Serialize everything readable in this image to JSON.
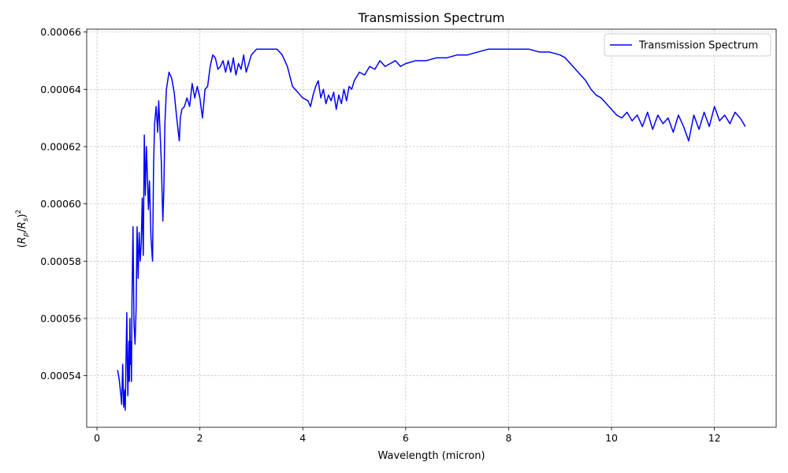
{
  "chart_data": {
    "type": "line",
    "title": "Transmission Spectrum",
    "xlabel": "Wavelength (micron)",
    "ylabel": "(R_p/R_s)^2",
    "ylabel_parts": {
      "open": "(",
      "R": "R",
      "p": "p",
      "slash": "/",
      "s": "s",
      "close": ")",
      "exp": "2"
    },
    "xlim": [
      -0.2,
      13.2
    ],
    "ylim": [
      0.000522,
      0.000661
    ],
    "xticks": [
      0,
      2,
      4,
      6,
      8,
      10,
      12
    ],
    "xtick_labels": [
      "0",
      "2",
      "4",
      "6",
      "8",
      "10",
      "12"
    ],
    "yticks": [
      0.00054,
      0.00056,
      0.00058,
      0.0006,
      0.00062,
      0.00064,
      0.00066
    ],
    "ytick_labels": [
      "0.00054",
      "0.00056",
      "0.00058",
      "0.00060",
      "0.00062",
      "0.00064",
      "0.00066"
    ],
    "grid": true,
    "legend_position": "top-right",
    "series": [
      {
        "name": "Transmission Spectrum",
        "color": "#0000ff",
        "x": [
          0.4,
          0.43,
          0.46,
          0.48,
          0.5,
          0.52,
          0.54,
          0.55,
          0.56,
          0.58,
          0.59,
          0.6,
          0.62,
          0.63,
          0.64,
          0.65,
          0.66,
          0.67,
          0.68,
          0.7,
          0.72,
          0.74,
          0.76,
          0.78,
          0.8,
          0.82,
          0.84,
          0.86,
          0.88,
          0.9,
          0.92,
          0.94,
          0.96,
          0.98,
          1.0,
          1.02,
          1.05,
          1.08,
          1.1,
          1.12,
          1.15,
          1.18,
          1.2,
          1.25,
          1.28,
          1.3,
          1.32,
          1.35,
          1.4,
          1.45,
          1.5,
          1.55,
          1.6,
          1.62,
          1.65,
          1.7,
          1.75,
          1.8,
          1.85,
          1.9,
          1.95,
          2.0,
          2.05,
          2.1,
          2.15,
          2.2,
          2.25,
          2.3,
          2.35,
          2.4,
          2.45,
          2.5,
          2.55,
          2.6,
          2.65,
          2.7,
          2.75,
          2.8,
          2.85,
          2.9,
          2.95,
          3.0,
          3.1,
          3.2,
          3.3,
          3.4,
          3.5,
          3.6,
          3.7,
          3.8,
          3.9,
          4.0,
          4.1,
          4.15,
          4.2,
          4.25,
          4.3,
          4.35,
          4.4,
          4.45,
          4.5,
          4.55,
          4.6,
          4.65,
          4.7,
          4.75,
          4.8,
          4.85,
          4.9,
          4.95,
          5.0,
          5.1,
          5.2,
          5.3,
          5.4,
          5.5,
          5.6,
          5.7,
          5.8,
          5.9,
          6.0,
          6.2,
          6.4,
          6.6,
          6.8,
          7.0,
          7.2,
          7.4,
          7.6,
          7.8,
          8.0,
          8.2,
          8.4,
          8.6,
          8.8,
          9.0,
          9.1,
          9.2,
          9.3,
          9.4,
          9.5,
          9.6,
          9.7,
          9.8,
          9.9,
          10.0,
          10.1,
          10.2,
          10.3,
          10.4,
          10.5,
          10.6,
          10.7,
          10.8,
          10.9,
          11.0,
          11.1,
          11.2,
          11.3,
          11.4,
          11.5,
          11.6,
          11.7,
          11.8,
          11.9,
          12.0,
          12.1,
          12.2,
          12.3,
          12.4,
          12.5,
          12.6
        ],
        "y": [
          0.000542,
          0.000539,
          0.000534,
          0.00053,
          0.000544,
          0.000529,
          0.000535,
          0.000528,
          0.000541,
          0.000562,
          0.000545,
          0.000533,
          0.000552,
          0.000538,
          0.00056,
          0.000544,
          0.000552,
          0.000538,
          0.000565,
          0.000592,
          0.000558,
          0.000551,
          0.000563,
          0.000592,
          0.000574,
          0.00059,
          0.00058,
          0.000586,
          0.000602,
          0.000582,
          0.000624,
          0.000603,
          0.00062,
          0.00061,
          0.000598,
          0.000608,
          0.000588,
          0.00058,
          0.000613,
          0.000628,
          0.000634,
          0.000625,
          0.000636,
          0.000615,
          0.000594,
          0.000605,
          0.000628,
          0.00064,
          0.000646,
          0.000644,
          0.000639,
          0.00063,
          0.000622,
          0.00063,
          0.000633,
          0.000634,
          0.000637,
          0.000634,
          0.000642,
          0.000637,
          0.000641,
          0.000637,
          0.00063,
          0.00064,
          0.000641,
          0.000648,
          0.000652,
          0.000651,
          0.000647,
          0.000648,
          0.00065,
          0.000646,
          0.00065,
          0.000646,
          0.000651,
          0.000645,
          0.000649,
          0.000647,
          0.000652,
          0.000646,
          0.000649,
          0.000652,
          0.000654,
          0.000654,
          0.000654,
          0.000654,
          0.000654,
          0.000652,
          0.000648,
          0.000641,
          0.000639,
          0.000637,
          0.000636,
          0.000634,
          0.000638,
          0.000641,
          0.000643,
          0.000637,
          0.00064,
          0.000635,
          0.000638,
          0.000636,
          0.000639,
          0.000633,
          0.000638,
          0.000635,
          0.00064,
          0.000636,
          0.000641,
          0.00064,
          0.000643,
          0.000646,
          0.000645,
          0.000648,
          0.000647,
          0.00065,
          0.000648,
          0.000649,
          0.00065,
          0.000648,
          0.000649,
          0.00065,
          0.00065,
          0.000651,
          0.000651,
          0.000652,
          0.000652,
          0.000653,
          0.000654,
          0.000654,
          0.000654,
          0.000654,
          0.000654,
          0.000653,
          0.000653,
          0.000652,
          0.000651,
          0.000649,
          0.000647,
          0.000645,
          0.000643,
          0.00064,
          0.000638,
          0.000637,
          0.000635,
          0.000633,
          0.000631,
          0.00063,
          0.000632,
          0.000629,
          0.000631,
          0.000627,
          0.000632,
          0.000626,
          0.000631,
          0.000628,
          0.00063,
          0.000625,
          0.000631,
          0.000627,
          0.000622,
          0.000631,
          0.000626,
          0.000632,
          0.000627,
          0.000634,
          0.000629,
          0.000631,
          0.000628,
          0.000632,
          0.00063,
          0.000627
        ]
      }
    ]
  }
}
